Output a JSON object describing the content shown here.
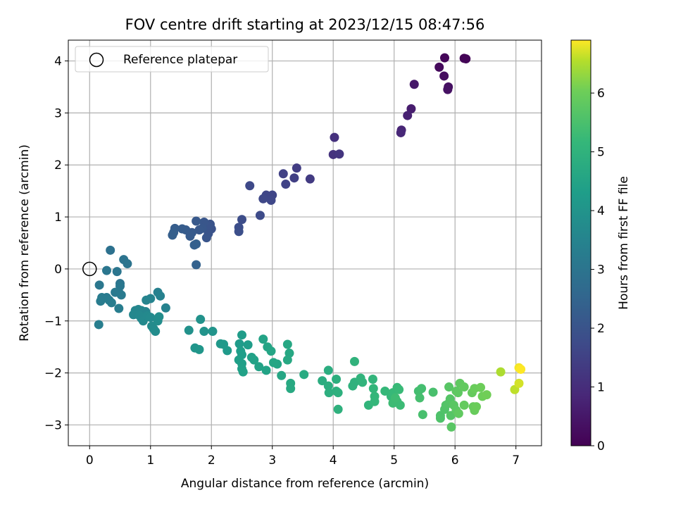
{
  "chart_data": {
    "type": "scatter",
    "title": "FOV centre drift starting at 2023/12/15 08:47:56",
    "xlabel": "Angular distance from reference (arcmin)",
    "ylabel": "Rotation from reference (arcmin)",
    "xlim": [
      -0.35,
      7.42
    ],
    "ylim": [
      -3.4,
      4.4
    ],
    "xticks": [
      0,
      1,
      2,
      3,
      4,
      5,
      6,
      7
    ],
    "yticks": [
      -3,
      -2,
      -1,
      0,
      1,
      2,
      3,
      4
    ],
    "grid": true,
    "legend": {
      "position": "top-left",
      "entries": [
        "Reference platepar"
      ]
    },
    "colorbar": {
      "label": "Hours from first FF file",
      "colormap": "viridis",
      "range": [
        0,
        6.9
      ],
      "ticks": [
        0,
        1,
        2,
        3,
        4,
        5,
        6
      ]
    },
    "reference_point": {
      "x": 0,
      "y": 0
    },
    "points": [
      [
        6.15,
        4.05,
        0.05
      ],
      [
        6.18,
        4.04,
        0.08
      ],
      [
        5.83,
        4.06,
        0.12
      ],
      [
        5.74,
        3.88,
        0.2
      ],
      [
        5.82,
        3.71,
        0.27
      ],
      [
        5.89,
        3.5,
        0.32
      ],
      [
        5.88,
        3.45,
        0.36
      ],
      [
        5.33,
        3.55,
        0.5
      ],
      [
        5.28,
        3.08,
        0.62
      ],
      [
        5.22,
        2.95,
        0.7
      ],
      [
        5.12,
        2.67,
        0.8
      ],
      [
        5.11,
        2.62,
        0.86
      ],
      [
        4.02,
        2.53,
        1.1
      ],
      [
        4.0,
        2.2,
        1.15
      ],
      [
        4.1,
        2.21,
        1.2
      ],
      [
        3.62,
        1.73,
        1.35
      ],
      [
        3.4,
        1.94,
        1.4
      ],
      [
        3.36,
        1.75,
        1.45
      ],
      [
        3.18,
        1.83,
        1.5
      ],
      [
        3.22,
        1.63,
        1.55
      ],
      [
        3.0,
        1.42,
        1.6
      ],
      [
        2.9,
        1.42,
        1.62
      ],
      [
        2.98,
        1.32,
        1.65
      ],
      [
        2.85,
        1.35,
        1.67
      ],
      [
        2.63,
        1.6,
        1.7
      ],
      [
        2.8,
        1.03,
        1.75
      ],
      [
        2.5,
        0.95,
        1.8
      ],
      [
        2.45,
        0.8,
        1.85
      ],
      [
        2.45,
        0.72,
        1.88
      ],
      [
        2.0,
        0.77,
        1.95
      ],
      [
        1.98,
        0.86,
        1.97
      ],
      [
        1.95,
        0.82,
        2.0
      ],
      [
        1.95,
        0.68,
        2.02
      ],
      [
        1.92,
        0.6,
        2.05
      ],
      [
        1.88,
        0.9,
        2.07
      ],
      [
        1.85,
        0.78,
        2.1
      ],
      [
        1.8,
        0.75,
        2.12
      ],
      [
        1.75,
        0.92,
        2.15
      ],
      [
        1.68,
        0.7,
        2.18
      ],
      [
        1.65,
        0.63,
        2.2
      ],
      [
        1.58,
        0.75,
        2.22
      ],
      [
        1.52,
        0.77,
        2.25
      ],
      [
        1.4,
        0.78,
        2.28
      ],
      [
        1.38,
        0.7,
        2.3
      ],
      [
        1.36,
        0.65,
        2.32
      ],
      [
        1.75,
        0.48,
        2.35
      ],
      [
        1.72,
        0.46,
        2.37
      ],
      [
        1.75,
        0.08,
        2.42
      ],
      [
        0.34,
        0.36,
        2.9
      ],
      [
        0.56,
        0.18,
        2.95
      ],
      [
        0.62,
        0.1,
        2.97
      ],
      [
        0.5,
        -0.28,
        3.0
      ],
      [
        0.45,
        -0.05,
        3.02
      ],
      [
        0.28,
        -0.03,
        3.05
      ],
      [
        0.16,
        -0.31,
        3.08
      ],
      [
        0.5,
        -0.33,
        3.1
      ],
      [
        0.48,
        -0.45,
        3.12
      ],
      [
        0.42,
        -0.45,
        3.15
      ],
      [
        0.52,
        -0.5,
        3.17
      ],
      [
        0.28,
        -0.55,
        3.2
      ],
      [
        0.2,
        -0.55,
        3.22
      ],
      [
        0.18,
        -0.62,
        3.24
      ],
      [
        0.32,
        -0.6,
        3.26
      ],
      [
        0.36,
        -0.65,
        3.28
      ],
      [
        0.48,
        -0.76,
        3.3
      ],
      [
        0.15,
        -1.07,
        3.32
      ],
      [
        1.12,
        -0.45,
        3.4
      ],
      [
        1.16,
        -0.52,
        3.42
      ],
      [
        1.25,
        -0.75,
        3.45
      ],
      [
        1.0,
        -0.57,
        3.47
      ],
      [
        0.93,
        -0.6,
        3.5
      ],
      [
        0.92,
        -0.82,
        3.52
      ],
      [
        0.85,
        -0.8,
        3.54
      ],
      [
        0.8,
        -0.78,
        3.56
      ],
      [
        0.75,
        -0.8,
        3.58
      ],
      [
        0.72,
        -0.88,
        3.6
      ],
      [
        0.82,
        -0.9,
        3.62
      ],
      [
        0.85,
        -0.95,
        3.64
      ],
      [
        0.88,
        -1.0,
        3.66
      ],
      [
        0.95,
        -0.9,
        3.68
      ],
      [
        1.0,
        -0.93,
        3.7
      ],
      [
        1.02,
        -1.1,
        3.72
      ],
      [
        1.05,
        -1.15,
        3.74
      ],
      [
        1.08,
        -1.2,
        3.76
      ],
      [
        1.12,
        -1.0,
        3.78
      ],
      [
        1.14,
        -0.92,
        3.8
      ],
      [
        1.63,
        -1.18,
        3.9
      ],
      [
        1.82,
        -0.97,
        3.95
      ],
      [
        1.88,
        -1.2,
        3.97
      ],
      [
        2.02,
        -1.2,
        4.0
      ],
      [
        1.73,
        -1.52,
        4.05
      ],
      [
        1.8,
        -1.55,
        4.07
      ],
      [
        2.15,
        -1.44,
        4.12
      ],
      [
        2.2,
        -1.45,
        4.15
      ],
      [
        2.26,
        -1.57,
        4.18
      ],
      [
        2.46,
        -1.44,
        4.22
      ],
      [
        2.5,
        -1.27,
        4.25
      ],
      [
        2.6,
        -1.46,
        4.27
      ],
      [
        2.48,
        -1.58,
        4.3
      ],
      [
        2.5,
        -1.65,
        4.32
      ],
      [
        2.45,
        -1.75,
        4.34
      ],
      [
        2.5,
        -1.82,
        4.36
      ],
      [
        2.5,
        -1.92,
        4.38
      ],
      [
        2.52,
        -1.98,
        4.4
      ],
      [
        2.66,
        -1.7,
        4.42
      ],
      [
        2.7,
        -1.75,
        4.44
      ],
      [
        2.78,
        -1.88,
        4.46
      ],
      [
        2.9,
        -1.95,
        4.48
      ],
      [
        2.85,
        -1.35,
        4.5
      ],
      [
        2.92,
        -1.5,
        4.52
      ],
      [
        2.98,
        -1.58,
        4.54
      ],
      [
        3.08,
        -1.83,
        4.56
      ],
      [
        3.02,
        -1.8,
        4.58
      ],
      [
        3.15,
        -2.05,
        4.6
      ],
      [
        3.25,
        -1.45,
        4.62
      ],
      [
        3.28,
        -1.62,
        4.64
      ],
      [
        3.25,
        -1.75,
        4.66
      ],
      [
        3.3,
        -2.2,
        4.68
      ],
      [
        3.3,
        -2.3,
        4.7
      ],
      [
        3.52,
        -2.03,
        4.72
      ],
      [
        3.82,
        -2.15,
        4.8
      ],
      [
        3.92,
        -1.95,
        4.82
      ],
      [
        3.92,
        -2.25,
        4.84
      ],
      [
        3.93,
        -2.38,
        4.86
      ],
      [
        4.05,
        -2.12,
        4.88
      ],
      [
        4.05,
        -2.35,
        4.9
      ],
      [
        4.08,
        -2.38,
        4.92
      ],
      [
        4.08,
        -2.7,
        4.94
      ],
      [
        4.32,
        -2.25,
        4.96
      ],
      [
        4.35,
        -2.18,
        4.98
      ],
      [
        4.35,
        -1.78,
        5.0
      ],
      [
        4.45,
        -2.1,
        5.02
      ],
      [
        4.48,
        -2.18,
        5.04
      ],
      [
        4.58,
        -2.62,
        5.06
      ],
      [
        4.65,
        -2.12,
        5.08
      ],
      [
        4.66,
        -2.3,
        5.1
      ],
      [
        4.68,
        -2.45,
        5.12
      ],
      [
        4.68,
        -2.55,
        5.14
      ],
      [
        4.85,
        -2.35,
        5.16
      ],
      [
        4.95,
        -2.45,
        5.18
      ],
      [
        4.98,
        -2.38,
        5.2
      ],
      [
        5.05,
        -2.28,
        5.22
      ],
      [
        5.08,
        -2.32,
        5.24
      ],
      [
        5.05,
        -2.55,
        5.26
      ],
      [
        5.1,
        -2.62,
        5.28
      ],
      [
        4.98,
        -2.58,
        5.3
      ],
      [
        5.02,
        -2.48,
        5.32
      ],
      [
        5.4,
        -2.35,
        5.4
      ],
      [
        5.45,
        -2.3,
        5.42
      ],
      [
        5.42,
        -2.48,
        5.44
      ],
      [
        5.47,
        -2.8,
        5.46
      ],
      [
        5.64,
        -2.37,
        5.48
      ],
      [
        5.76,
        -2.82,
        5.55
      ],
      [
        5.76,
        -2.87,
        5.57
      ],
      [
        5.83,
        -2.7,
        5.6
      ],
      [
        5.85,
        -2.62,
        5.62
      ],
      [
        5.9,
        -2.58,
        5.64
      ],
      [
        5.92,
        -2.5,
        5.66
      ],
      [
        5.93,
        -2.82,
        5.68
      ],
      [
        5.9,
        -2.27,
        5.7
      ],
      [
        5.94,
        -3.04,
        5.72
      ],
      [
        5.98,
        -2.62,
        5.74
      ],
      [
        6.02,
        -2.72,
        5.76
      ],
      [
        6.02,
        -2.35,
        5.78
      ],
      [
        6.05,
        -2.38,
        5.8
      ],
      [
        6.08,
        -2.2,
        5.82
      ],
      [
        6.06,
        -2.78,
        5.84
      ],
      [
        6.15,
        -2.27,
        5.86
      ],
      [
        6.15,
        -2.62,
        5.88
      ],
      [
        6.28,
        -2.38,
        5.9
      ],
      [
        6.3,
        -2.65,
        5.92
      ],
      [
        6.32,
        -2.72,
        5.94
      ],
      [
        6.32,
        -2.3,
        5.96
      ],
      [
        6.35,
        -2.65,
        5.98
      ],
      [
        6.42,
        -2.28,
        6.0
      ],
      [
        6.45,
        -2.45,
        6.02
      ],
      [
        6.52,
        -2.42,
        6.05
      ],
      [
        6.75,
        -1.98,
        6.5
      ],
      [
        6.98,
        -2.32,
        6.6
      ],
      [
        7.05,
        -2.2,
        6.7
      ],
      [
        7.05,
        -1.9,
        6.85
      ],
      [
        7.08,
        -1.93,
        6.9
      ]
    ]
  }
}
